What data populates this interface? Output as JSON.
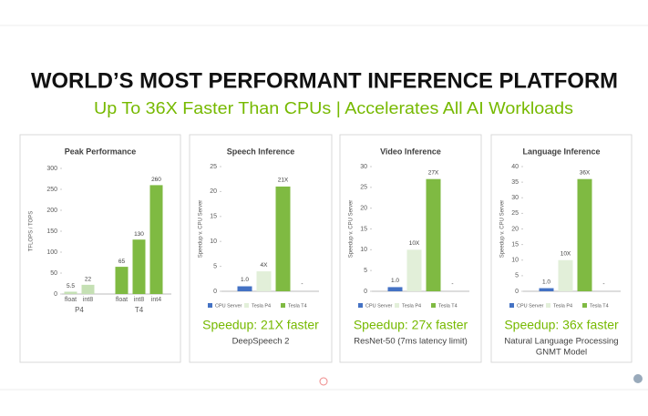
{
  "header": {
    "title": "WORLD’S MOST PERFORMANT INFERENCE PLATFORM",
    "subtitle": "Up To 36X Faster Than CPUs | Accelerates All AI Workloads"
  },
  "chart_data": [
    {
      "type": "grouped-bar",
      "title": "Peak Performance",
      "y_label": "TFLOPS / TOPS",
      "ylim": [
        0,
        300
      ],
      "yticks": [
        0,
        50,
        100,
        150,
        200,
        250,
        300
      ],
      "groups": [
        {
          "name": "P4",
          "color": "#c5e0b4",
          "categories": [
            "float",
            "int8"
          ],
          "values": [
            5.5,
            22
          ]
        },
        {
          "name": "T4",
          "color": "#7fba42",
          "categories": [
            "float",
            "int8",
            "int4"
          ],
          "values": [
            65,
            130,
            260
          ]
        }
      ]
    },
    {
      "type": "bar",
      "title": "Speech Inference",
      "y_label": "Speedup v. CPU Server",
      "ylim": [
        0,
        25
      ],
      "yticks": [
        0,
        5,
        10,
        15,
        20,
        25
      ],
      "series": [
        {
          "name": "CPU Server",
          "color": "#4472c4",
          "values": [
            1.0
          ],
          "value_labels": [
            "1.0"
          ]
        },
        {
          "name": "Tesla P4",
          "color": "#e2efd9",
          "values": [
            4
          ],
          "value_labels": [
            "4X"
          ]
        },
        {
          "name": "Tesla T4",
          "color": "#7fba42",
          "values": [
            21
          ],
          "value_labels": [
            "21X"
          ]
        }
      ],
      "annotation": "-",
      "caption": "Speedup: 21X faster",
      "notes": [
        "DeepSpeech 2"
      ]
    },
    {
      "type": "bar",
      "title": "Video Inference",
      "y_label": "Speedup v. CPU Server",
      "ylim": [
        0,
        30
      ],
      "yticks": [
        0,
        5,
        10,
        15,
        20,
        25,
        30
      ],
      "series": [
        {
          "name": "CPU Server",
          "color": "#4472c4",
          "values": [
            1.0
          ],
          "value_labels": [
            "1.0"
          ]
        },
        {
          "name": "Tesla P4",
          "color": "#e2efd9",
          "values": [
            10
          ],
          "value_labels": [
            "10X"
          ]
        },
        {
          "name": "Tesla T4",
          "color": "#7fba42",
          "values": [
            27
          ],
          "value_labels": [
            "27X"
          ]
        }
      ],
      "annotation": "-",
      "caption": "Speedup: 27x faster",
      "notes": [
        "ResNet-50 (7ms latency limit)"
      ]
    },
    {
      "type": "bar",
      "title": "Language Inference",
      "y_label": "Speedup v. CPU Server",
      "ylim": [
        0,
        40
      ],
      "yticks": [
        0,
        5,
        10,
        15,
        20,
        25,
        30,
        35,
        40
      ],
      "series": [
        {
          "name": "CPU Server",
          "color": "#4472c4",
          "values": [
            1.0
          ],
          "value_labels": [
            "1.0"
          ]
        },
        {
          "name": "Tesla P4",
          "color": "#e2efd9",
          "values": [
            10
          ],
          "value_labels": [
            "10X"
          ]
        },
        {
          "name": "Tesla T4",
          "color": "#7fba42",
          "values": [
            36
          ],
          "value_labels": [
            "36X"
          ]
        }
      ],
      "annotation": "-",
      "caption": "Speedup: 36x faster",
      "notes": [
        "Natural Language Processing",
        "GNMT Model"
      ]
    }
  ]
}
